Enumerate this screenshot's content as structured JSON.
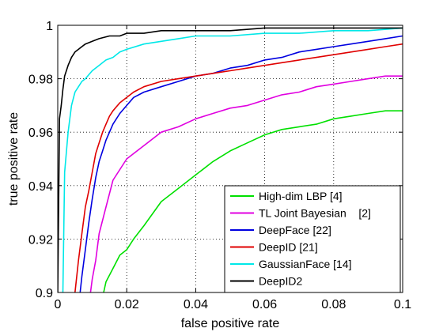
{
  "chart_data": {
    "type": "line",
    "title": "",
    "xlabel": "false positive rate",
    "ylabel": "true positive rate",
    "xlim": [
      0,
      0.1
    ],
    "ylim": [
      0.9,
      1.0
    ],
    "xticks": [
      0,
      0.02,
      0.04,
      0.06,
      0.08,
      0.1
    ],
    "xtick_labels": [
      "0",
      "0.02",
      "0.04",
      "0.06",
      "0.08",
      "0.1"
    ],
    "yticks": [
      0.9,
      0.92,
      0.94,
      0.96,
      0.98,
      1.0
    ],
    "ytick_labels": [
      "0.9",
      "0.92",
      "0.94",
      "0.96",
      "0.98",
      "1"
    ],
    "grid": true,
    "legend_position": "bottom-right",
    "series": [
      {
        "name": "High-dim LBP [4]",
        "color": "#00e000",
        "x": [
          0.0133,
          0.014,
          0.016,
          0.018,
          0.02,
          0.022,
          0.025,
          0.03,
          0.035,
          0.04,
          0.045,
          0.05,
          0.055,
          0.06,
          0.065,
          0.07,
          0.075,
          0.08,
          0.085,
          0.09,
          0.095,
          0.1
        ],
        "y": [
          0.9,
          0.904,
          0.909,
          0.914,
          0.916,
          0.92,
          0.925,
          0.934,
          0.939,
          0.944,
          0.949,
          0.953,
          0.956,
          0.959,
          0.961,
          0.962,
          0.963,
          0.965,
          0.966,
          0.967,
          0.968,
          0.968
        ]
      },
      {
        "name": "TL Joint Bayesian    [2]",
        "color": "#e000e0",
        "x": [
          0.0095,
          0.01,
          0.011,
          0.012,
          0.014,
          0.016,
          0.018,
          0.02,
          0.023,
          0.026,
          0.03,
          0.035,
          0.04,
          0.045,
          0.05,
          0.055,
          0.06,
          0.065,
          0.07,
          0.075,
          0.08,
          0.085,
          0.09,
          0.095,
          0.1
        ],
        "y": [
          0.9,
          0.905,
          0.912,
          0.922,
          0.932,
          0.942,
          0.946,
          0.95,
          0.953,
          0.956,
          0.96,
          0.962,
          0.965,
          0.967,
          0.969,
          0.97,
          0.972,
          0.974,
          0.975,
          0.977,
          0.978,
          0.979,
          0.98,
          0.981,
          0.981
        ]
      },
      {
        "name": "DeepFace [22]",
        "color": "#0000e0",
        "x": [
          0.0065,
          0.007,
          0.008,
          0.009,
          0.01,
          0.011,
          0.012,
          0.013,
          0.014,
          0.015,
          0.016,
          0.018,
          0.02,
          0.022,
          0.025,
          0.03,
          0.035,
          0.04,
          0.045,
          0.05,
          0.055,
          0.06,
          0.065,
          0.07,
          0.075,
          0.08,
          0.085,
          0.09,
          0.095,
          0.1
        ],
        "y": [
          0.9,
          0.906,
          0.916,
          0.926,
          0.935,
          0.943,
          0.949,
          0.953,
          0.957,
          0.96,
          0.963,
          0.967,
          0.97,
          0.973,
          0.975,
          0.977,
          0.979,
          0.981,
          0.982,
          0.984,
          0.985,
          0.987,
          0.988,
          0.99,
          0.991,
          0.992,
          0.993,
          0.994,
          0.995,
          0.996
        ]
      },
      {
        "name": "DeepID [21]",
        "color": "#e00000",
        "x": [
          0.005,
          0.006,
          0.007,
          0.008,
          0.009,
          0.01,
          0.011,
          0.012,
          0.013,
          0.014,
          0.015,
          0.016,
          0.018,
          0.02,
          0.022,
          0.025,
          0.03,
          0.035,
          0.04,
          0.045,
          0.05,
          0.055,
          0.06,
          0.065,
          0.07,
          0.075,
          0.08,
          0.085,
          0.09,
          0.095,
          0.1
        ],
        "y": [
          0.9,
          0.912,
          0.922,
          0.932,
          0.938,
          0.945,
          0.952,
          0.956,
          0.96,
          0.963,
          0.966,
          0.968,
          0.971,
          0.973,
          0.975,
          0.977,
          0.979,
          0.98,
          0.981,
          0.982,
          0.983,
          0.984,
          0.985,
          0.986,
          0.987,
          0.988,
          0.989,
          0.99,
          0.991,
          0.992,
          0.993
        ]
      },
      {
        "name": "GaussianFace [14]",
        "color": "#00e8e8",
        "x": [
          0.0015,
          0.002,
          0.003,
          0.004,
          0.005,
          0.006,
          0.007,
          0.008,
          0.01,
          0.012,
          0.014,
          0.016,
          0.018,
          0.02,
          0.025,
          0.03,
          0.035,
          0.04,
          0.05,
          0.06,
          0.07,
          0.08,
          0.09,
          0.1
        ],
        "y": [
          0.9,
          0.945,
          0.96,
          0.97,
          0.975,
          0.977,
          0.979,
          0.98,
          0.983,
          0.985,
          0.987,
          0.988,
          0.99,
          0.991,
          0.993,
          0.994,
          0.995,
          0.996,
          0.996,
          0.997,
          0.997,
          0.998,
          0.998,
          0.999
        ]
      },
      {
        "name": "DeepID2",
        "color": "#000000",
        "x": [
          0.0,
          0.0005,
          0.001,
          0.0015,
          0.002,
          0.003,
          0.004,
          0.005,
          0.006,
          0.007,
          0.008,
          0.01,
          0.012,
          0.015,
          0.018,
          0.02,
          0.025,
          0.03,
          0.04,
          0.05,
          0.06,
          0.07,
          0.08,
          0.09,
          0.1
        ],
        "y": [
          0.9,
          0.965,
          0.97,
          0.976,
          0.981,
          0.985,
          0.988,
          0.99,
          0.991,
          0.992,
          0.993,
          0.994,
          0.995,
          0.996,
          0.996,
          0.997,
          0.997,
          0.998,
          0.998,
          0.998,
          0.999,
          0.999,
          0.999,
          0.999,
          0.999
        ]
      }
    ]
  }
}
